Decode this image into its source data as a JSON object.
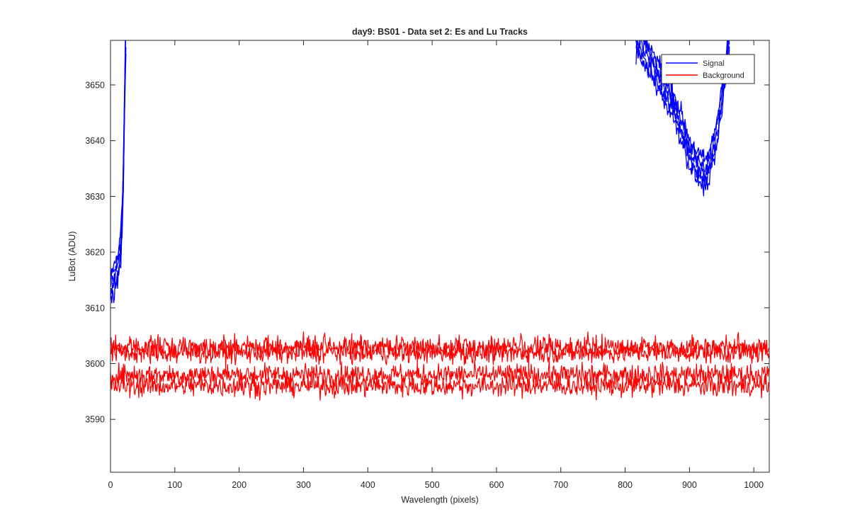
{
  "chart_data": {
    "type": "line",
    "title": "day9: BS01 - Data set 2: Es and Lu Tracks",
    "xlabel": "Wavelength (pixels)",
    "ylabel": "LuBot (ADU)",
    "xlim": [
      0,
      1024
    ],
    "ylim": [
      3580.5,
      3658
    ],
    "xticks": [
      0,
      100,
      200,
      300,
      400,
      500,
      600,
      700,
      800,
      900,
      1000
    ],
    "yticks": [
      3590,
      3600,
      3610,
      3620,
      3630,
      3640,
      3650
    ],
    "grid": false,
    "legend_position": "top-right",
    "legend": [
      "Signal",
      "Background"
    ],
    "colors": {
      "signal": "#0000ff",
      "background": "#ff0000",
      "axis": "#262626"
    },
    "series": [
      {
        "name": "Signal",
        "color": "#0000ff",
        "tracks": 5,
        "segments": [
          {
            "x": [
              0,
              4,
              8,
              12,
              16,
              18,
              20,
              21,
              22,
              23,
              24
            ],
            "y": [
              3614,
              3615,
              3616,
              3617.5,
              3621,
              3626,
              3634,
              3641,
              3648,
              3655,
              3658
            ]
          },
          {
            "x": [
              817,
              840,
              860,
              880,
              900,
              915,
              925,
              935,
              945,
              955,
              962
            ],
            "y": [
              3658,
              3654,
              3650,
              3645,
              3638,
              3635,
              3634,
              3637,
              3643,
              3652,
              3658
            ]
          }
        ]
      },
      {
        "name": "Background",
        "color": "#ff0000",
        "tracks": 4,
        "levels": [
          3603,
          3602,
          3598,
          3596
        ],
        "noise_range": [
          3591,
          3608
        ]
      }
    ]
  }
}
